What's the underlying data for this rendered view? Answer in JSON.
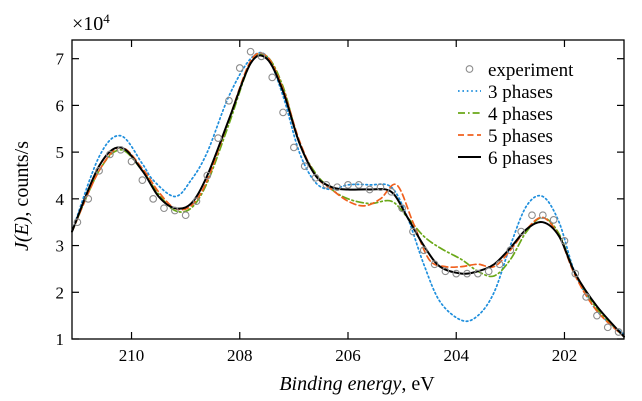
{
  "chart_data": {
    "type": "line",
    "xlabel": {
      "italic": "Binding energy",
      "rest": ", eV"
    },
    "ylabel": {
      "italic": "J(E)",
      "rest": ", counts/s"
    },
    "y_multiplier": {
      "base": "×10",
      "exponent": "4"
    },
    "xlim": [
      211.1,
      200.9
    ],
    "ylim": [
      1,
      7.4
    ],
    "x_reversed": true,
    "xticks": [
      210,
      208,
      206,
      204,
      202
    ],
    "yticks": [
      1,
      2,
      3,
      4,
      5,
      6,
      7
    ],
    "grid": false,
    "legend_position": "top-right",
    "legend": [
      "experiment",
      "3 phases",
      "4 phases",
      "5 phases",
      "6 phases"
    ],
    "series": [
      {
        "name": "experiment",
        "style": "markers",
        "color": "#8c8c8c",
        "x": [
          211.0,
          210.8,
          210.6,
          210.4,
          210.2,
          210.0,
          209.8,
          209.6,
          209.4,
          209.2,
          209.0,
          208.8,
          208.6,
          208.4,
          208.2,
          208.0,
          207.8,
          207.6,
          207.4,
          207.2,
          207.0,
          206.8,
          206.6,
          206.4,
          206.2,
          206.0,
          205.8,
          205.6,
          205.4,
          205.2,
          205.0,
          204.8,
          204.6,
          204.4,
          204.2,
          204.0,
          203.8,
          203.6,
          203.4,
          203.2,
          203.0,
          202.8,
          202.6,
          202.4,
          202.2,
          202.0,
          201.8,
          201.6,
          201.4,
          201.2,
          201.0
        ],
        "y": [
          3.5,
          4.0,
          4.6,
          4.95,
          5.05,
          4.8,
          4.4,
          4.0,
          3.8,
          3.75,
          3.65,
          3.95,
          4.5,
          5.3,
          6.1,
          6.8,
          7.15,
          7.05,
          6.6,
          5.85,
          5.1,
          4.7,
          4.45,
          4.3,
          4.25,
          4.3,
          4.3,
          4.2,
          4.25,
          4.15,
          3.8,
          3.3,
          2.9,
          2.6,
          2.45,
          2.4,
          2.4,
          2.4,
          2.45,
          2.6,
          2.9,
          3.3,
          3.65,
          3.65,
          3.55,
          3.1,
          2.4,
          1.9,
          1.5,
          1.25,
          1.15
        ]
      },
      {
        "name": "3 phases",
        "style": "dotted",
        "color": "#1f8fdd",
        "x": [
          211.1,
          210.6,
          210.2,
          209.8,
          209.6,
          209.2,
          208.9,
          208.6,
          208.2,
          207.8,
          207.5,
          207.2,
          206.9,
          206.6,
          206.3,
          206.0,
          205.6,
          205.2,
          204.9,
          204.6,
          204.3,
          203.9,
          203.6,
          203.3,
          203.0,
          202.7,
          202.4,
          202.1,
          201.8,
          201.4,
          200.9
        ],
        "y": [
          3.3,
          4.9,
          5.35,
          4.75,
          4.4,
          4.05,
          4.4,
          5.0,
          6.2,
          7.0,
          7.05,
          6.2,
          5.0,
          4.35,
          4.2,
          4.3,
          4.3,
          4.25,
          3.6,
          2.6,
          1.8,
          1.4,
          1.5,
          2.0,
          3.0,
          3.85,
          4.05,
          3.5,
          2.4,
          1.6,
          1.1
        ]
      },
      {
        "name": "4 phases",
        "style": "dashdot",
        "color": "#6aa818",
        "x": [
          211.1,
          210.6,
          210.2,
          209.8,
          209.5,
          209.2,
          208.9,
          208.6,
          208.2,
          207.8,
          207.5,
          207.2,
          206.9,
          206.6,
          206.3,
          206.0,
          205.6,
          205.2,
          204.9,
          204.6,
          204.3,
          203.9,
          203.6,
          203.3,
          203.0,
          202.7,
          202.4,
          202.1,
          201.8,
          201.4,
          200.9
        ],
        "y": [
          3.3,
          4.6,
          5.05,
          4.6,
          4.1,
          3.75,
          3.8,
          4.35,
          5.6,
          6.9,
          7.05,
          6.4,
          5.2,
          4.55,
          4.2,
          4.0,
          3.9,
          3.95,
          3.6,
          3.2,
          2.95,
          2.7,
          2.45,
          2.35,
          2.7,
          3.3,
          3.6,
          3.25,
          2.4,
          1.65,
          1.05
        ]
      },
      {
        "name": "5 phases",
        "style": "dashed",
        "color": "#f0601e",
        "x": [
          211.1,
          210.6,
          210.2,
          209.8,
          209.5,
          209.2,
          208.9,
          208.6,
          208.2,
          207.8,
          207.5,
          207.2,
          206.9,
          206.6,
          206.3,
          206.0,
          205.7,
          205.4,
          205.1,
          204.8,
          204.5,
          204.2,
          203.9,
          203.6,
          203.3,
          203.0,
          202.7,
          202.4,
          202.1,
          201.8,
          201.4,
          200.9
        ],
        "y": [
          3.3,
          4.6,
          5.1,
          4.65,
          4.15,
          3.8,
          3.85,
          4.4,
          5.7,
          6.95,
          7.05,
          6.35,
          5.25,
          4.5,
          4.2,
          3.95,
          3.85,
          4.0,
          4.3,
          3.5,
          2.7,
          2.55,
          2.55,
          2.6,
          2.55,
          2.9,
          3.35,
          3.6,
          3.2,
          2.35,
          1.6,
          1.05
        ]
      },
      {
        "name": "6 phases",
        "style": "solid",
        "color": "#000000",
        "x": [
          211.1,
          210.6,
          210.2,
          209.8,
          209.5,
          209.2,
          208.9,
          208.6,
          208.2,
          207.8,
          207.5,
          207.2,
          206.9,
          206.6,
          206.3,
          206.0,
          205.6,
          205.2,
          204.9,
          204.6,
          204.3,
          203.9,
          203.6,
          203.3,
          203.0,
          202.7,
          202.4,
          202.1,
          201.8,
          201.4,
          200.9
        ],
        "y": [
          3.3,
          4.7,
          5.1,
          4.6,
          4.05,
          3.8,
          3.9,
          4.5,
          5.7,
          6.9,
          7.0,
          6.3,
          5.2,
          4.5,
          4.25,
          4.2,
          4.2,
          4.15,
          3.6,
          3.0,
          2.55,
          2.4,
          2.45,
          2.6,
          2.95,
          3.35,
          3.5,
          3.2,
          2.4,
          1.7,
          1.05
        ]
      }
    ]
  }
}
